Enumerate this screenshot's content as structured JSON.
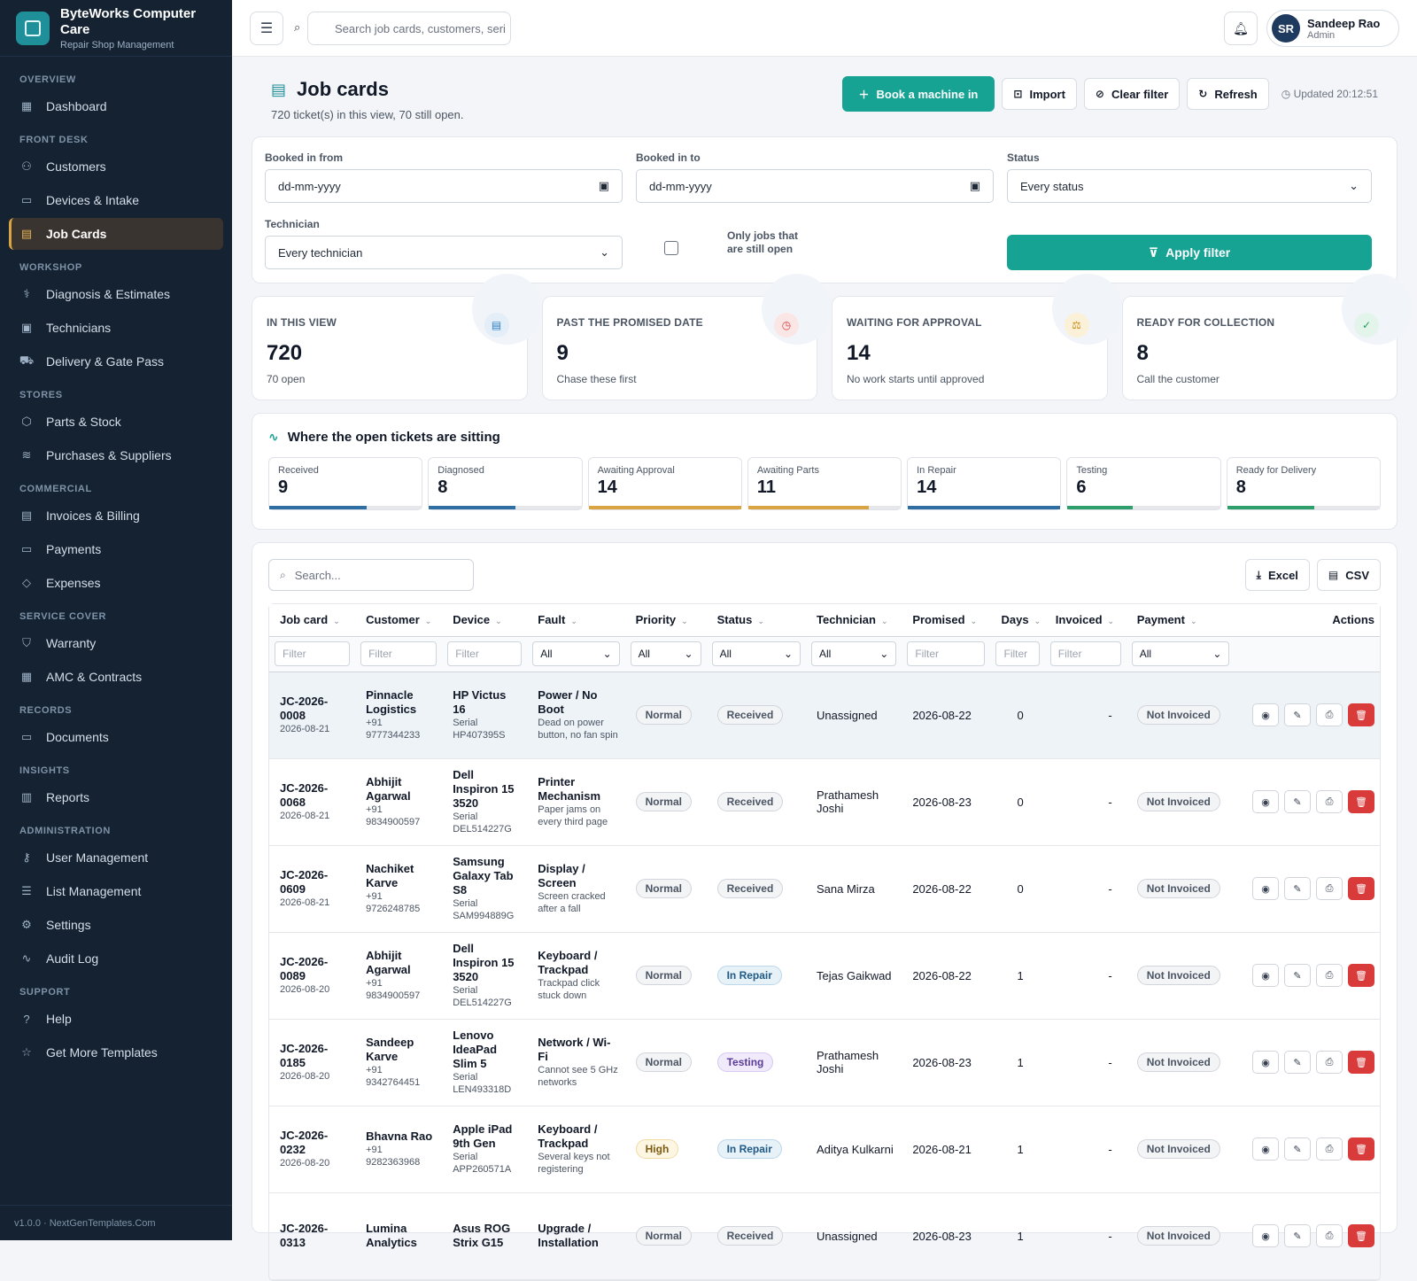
{
  "brand": {
    "name": "ByteWorks Computer Care",
    "tagline": "Repair Shop Management"
  },
  "sidebar": {
    "sections": [
      {
        "title": "OVERVIEW",
        "items": [
          {
            "label": "Dashboard",
            "icon": "grid-icon"
          }
        ]
      },
      {
        "title": "FRONT DESK",
        "items": [
          {
            "label": "Customers",
            "icon": "users-icon"
          },
          {
            "label": "Devices & Intake",
            "icon": "laptop-icon"
          },
          {
            "label": "Job Cards",
            "icon": "clipboard-icon",
            "active": true
          }
        ]
      },
      {
        "title": "WORKSHOP",
        "items": [
          {
            "label": "Diagnosis & Estimates",
            "icon": "stethoscope-icon"
          },
          {
            "label": "Technicians",
            "icon": "id-card-icon"
          },
          {
            "label": "Delivery & Gate Pass",
            "icon": "truck-icon"
          }
        ]
      },
      {
        "title": "STORES",
        "items": [
          {
            "label": "Parts & Stock",
            "icon": "box-icon"
          },
          {
            "label": "Purchases & Suppliers",
            "icon": "layers-icon"
          }
        ]
      },
      {
        "title": "COMMERCIAL",
        "items": [
          {
            "label": "Invoices & Billing",
            "icon": "receipt-icon"
          },
          {
            "label": "Payments",
            "icon": "wallet-icon"
          },
          {
            "label": "Expenses",
            "icon": "tag-icon"
          }
        ]
      },
      {
        "title": "SERVICE COVER",
        "items": [
          {
            "label": "Warranty",
            "icon": "shield-icon"
          },
          {
            "label": "AMC & Contracts",
            "icon": "calendar-icon"
          }
        ]
      },
      {
        "title": "RECORDS",
        "items": [
          {
            "label": "Documents",
            "icon": "folder-icon"
          }
        ]
      },
      {
        "title": "INSIGHTS",
        "items": [
          {
            "label": "Reports",
            "icon": "bar-chart-icon"
          }
        ]
      },
      {
        "title": "ADMINISTRATION",
        "items": [
          {
            "label": "User Management",
            "icon": "key-icon"
          },
          {
            "label": "List Management",
            "icon": "list-icon"
          },
          {
            "label": "Settings",
            "icon": "gear-icon"
          },
          {
            "label": "Audit Log",
            "icon": "activity-icon"
          }
        ]
      },
      {
        "title": "SUPPORT",
        "items": [
          {
            "label": "Help",
            "icon": "help-circle-icon"
          },
          {
            "label": "Get More Templates",
            "icon": "star-icon"
          }
        ]
      }
    ],
    "footer": "v1.0.0 · NextGenTemplates.Com"
  },
  "topbar": {
    "search_placeholder": "Search job cards, customers, seri",
    "user": {
      "initials": "SR",
      "name": "Sandeep Rao",
      "role": "Admin"
    }
  },
  "page": {
    "title": "Job cards",
    "subtitle": "720 ticket(s) in this view, 70 still open.",
    "buttons": {
      "book": "Book a machine in",
      "import": "Import",
      "clear": "Clear filter",
      "refresh": "Refresh"
    },
    "updated": "Updated 20:12:51"
  },
  "filters": {
    "from_label": "Booked in from",
    "from_value": "dd-mm-yyyy",
    "to_label": "Booked in to",
    "to_value": "dd-mm-yyyy",
    "status_label": "Status",
    "status_value": "Every status",
    "tech_label": "Technician",
    "tech_value": "Every technician",
    "open_only_label": "Only jobs that are still open",
    "apply": "Apply filter"
  },
  "stats": [
    {
      "label": "IN THIS VIEW",
      "value": "720",
      "sub": "70 open",
      "icon": "clipboard-icon",
      "color": "#2f7fc1",
      "bg": "#e3eef8"
    },
    {
      "label": "PAST THE PROMISED DATE",
      "value": "9",
      "sub": "Chase these first",
      "icon": "clock-icon",
      "color": "#d93a3a",
      "bg": "#fbe6e6"
    },
    {
      "label": "WAITING FOR APPROVAL",
      "value": "14",
      "sub": "No work starts until approved",
      "icon": "scale-icon",
      "color": "#c98a12",
      "bg": "#fbf1d9"
    },
    {
      "label": "READY FOR COLLECTION",
      "value": "8",
      "sub": "Call the customer",
      "icon": "check-circle-icon",
      "color": "#1f9d55",
      "bg": "#e3f5ea"
    }
  ],
  "pipeline": {
    "title": "Where the open tickets are sitting",
    "stages": [
      {
        "label": "Received",
        "value": "9",
        "fill": 0.64,
        "color": "#2f6ea3"
      },
      {
        "label": "Diagnosed",
        "value": "8",
        "fill": 0.57,
        "color": "#2f6ea3"
      },
      {
        "label": "Awaiting Approval",
        "value": "14",
        "fill": 1.0,
        "color": "#d9a441"
      },
      {
        "label": "Awaiting Parts",
        "value": "11",
        "fill": 0.79,
        "color": "#d9a441"
      },
      {
        "label": "In Repair",
        "value": "14",
        "fill": 1.0,
        "color": "#2f6ea3"
      },
      {
        "label": "Testing",
        "value": "6",
        "fill": 0.43,
        "color": "#2e9e6a"
      },
      {
        "label": "Ready for Delivery",
        "value": "8",
        "fill": 0.57,
        "color": "#2e9e6a"
      }
    ]
  },
  "table": {
    "search_placeholder": "Search...",
    "exports": {
      "excel": "Excel",
      "csv": "CSV"
    },
    "columns": [
      "Job card",
      "Customer",
      "Device",
      "Fault",
      "Priority",
      "Status",
      "Technician",
      "Promised",
      "Days",
      "Invoiced",
      "Payment",
      "Actions"
    ],
    "filters": [
      "Filter",
      "Filter",
      "Filter",
      "All",
      "All",
      "All",
      "All",
      "Filter",
      "Filter",
      "Filter",
      "All"
    ],
    "rows": [
      {
        "id": "JC-2026-0008",
        "date": "2026-08-21",
        "customer": "Pinnacle Logistics",
        "phone": "+91 9777344233",
        "device": "HP Victus 16",
        "serial": "Serial HP407395S",
        "fault": "Power / No Boot",
        "fault_note": "Dead on power button, no fan spin",
        "priority": "Normal",
        "status": "Received",
        "tech": "Unassigned",
        "promised": "2026-08-22",
        "days": "0",
        "invoiced": "-",
        "payment": "Not Invoiced"
      },
      {
        "id": "JC-2026-0068",
        "date": "2026-08-21",
        "customer": "Abhijit Agarwal",
        "phone": "+91 9834900597",
        "device": "Dell Inspiron 15 3520",
        "serial": "Serial DEL514227G",
        "fault": "Printer Mechanism",
        "fault_note": "Paper jams on every third page",
        "priority": "Normal",
        "status": "Received",
        "tech": "Prathamesh Joshi",
        "promised": "2026-08-23",
        "days": "0",
        "invoiced": "-",
        "payment": "Not Invoiced"
      },
      {
        "id": "JC-2026-0609",
        "date": "2026-08-21",
        "customer": "Nachiket Karve",
        "phone": "+91 9726248785",
        "device": "Samsung Galaxy Tab S8",
        "serial": "Serial SAM994889G",
        "fault": "Display / Screen",
        "fault_note": "Screen cracked after a fall",
        "priority": "Normal",
        "status": "Received",
        "tech": "Sana Mirza",
        "promised": "2026-08-22",
        "days": "0",
        "invoiced": "-",
        "payment": "Not Invoiced"
      },
      {
        "id": "JC-2026-0089",
        "date": "2026-08-20",
        "customer": "Abhijit Agarwal",
        "phone": "+91 9834900597",
        "device": "Dell Inspiron 15 3520",
        "serial": "Serial DEL514227G",
        "fault": "Keyboard / Trackpad",
        "fault_note": "Trackpad click stuck down",
        "priority": "Normal",
        "status": "In Repair",
        "tech": "Tejas Gaikwad",
        "promised": "2026-08-22",
        "days": "1",
        "invoiced": "-",
        "payment": "Not Invoiced"
      },
      {
        "id": "JC-2026-0185",
        "date": "2026-08-20",
        "customer": "Sandeep Karve",
        "phone": "+91 9342764451",
        "device": "Lenovo IdeaPad Slim 5",
        "serial": "Serial LEN493318D",
        "fault": "Network / Wi-Fi",
        "fault_note": "Cannot see 5 GHz networks",
        "priority": "Normal",
        "status": "Testing",
        "tech": "Prathamesh Joshi",
        "promised": "2026-08-23",
        "days": "1",
        "invoiced": "-",
        "payment": "Not Invoiced"
      },
      {
        "id": "JC-2026-0232",
        "date": "2026-08-20",
        "customer": "Bhavna Rao",
        "phone": "+91 9282363968",
        "device": "Apple iPad 9th Gen",
        "serial": "Serial APP260571A",
        "fault": "Keyboard / Trackpad",
        "fault_note": "Several keys not registering",
        "priority": "High",
        "status": "In Repair",
        "tech": "Aditya Kulkarni",
        "promised": "2026-08-21",
        "days": "1",
        "invoiced": "-",
        "payment": "Not Invoiced"
      },
      {
        "id": "JC-2026-0313",
        "date": "",
        "customer": "Lumina Analytics",
        "phone": "",
        "device": "Asus ROG Strix G15",
        "serial": "",
        "fault": "Upgrade / Installation",
        "fault_note": "",
        "priority": "Normal",
        "status": "Received",
        "tech": "Unassigned",
        "promised": "2026-08-23",
        "days": "1",
        "invoiced": "-",
        "payment": "Not Invoiced"
      }
    ]
  }
}
